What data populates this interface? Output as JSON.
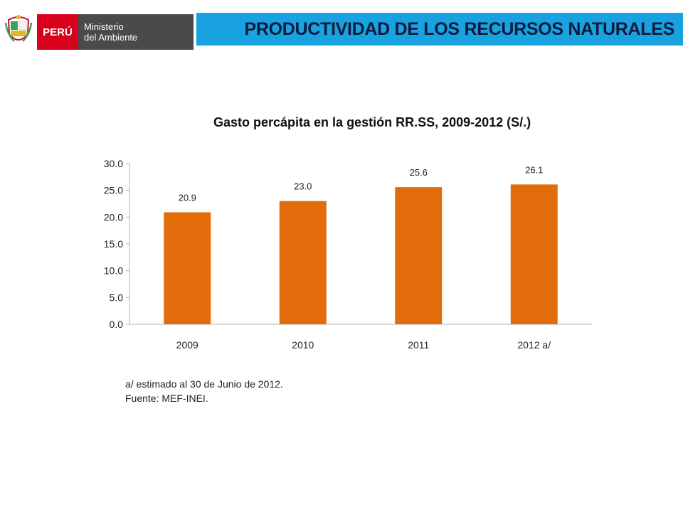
{
  "header": {
    "logo_country": "PERÚ",
    "logo_ministry_line1": "Ministerio",
    "logo_ministry_line2": "del Ambiente",
    "title": "PRODUCTIVIDAD DE LOS RECURSOS NATURALES"
  },
  "colors": {
    "title_bar": "#19a2e0",
    "logo_red": "#d9001b",
    "logo_gray": "#4a4a4a",
    "bar": "#e36c0a"
  },
  "chart_data": {
    "type": "bar",
    "title": "Gasto percápita  en la gestión RR.SS, 2009-2012  (S/.)",
    "categories": [
      "2009",
      "2010",
      "2011",
      "2012 a/"
    ],
    "values": [
      20.9,
      23.0,
      25.6,
      26.1
    ],
    "data_labels": [
      "20.9",
      "23.0",
      "25.6",
      "26.1"
    ],
    "yticks": [
      "0.0",
      "5.0",
      "10.0",
      "15.0",
      "20.0",
      "25.0",
      "30.0"
    ],
    "ylim": [
      0,
      30
    ],
    "grid": false,
    "legend": "none"
  },
  "notes": {
    "estimate": "a/ estimado al 30 de Junio de 2012.",
    "source": "Fuente: MEF-INEI."
  }
}
